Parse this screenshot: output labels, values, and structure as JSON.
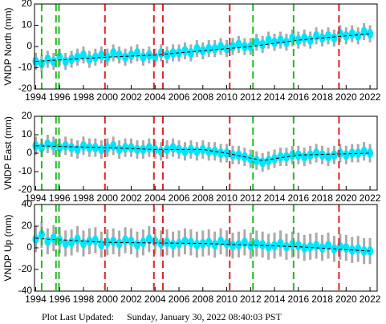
{
  "chart_data": [
    {
      "type": "scatter",
      "ylabel": "VNDP North (mm)",
      "color": "#00e5ff",
      "error_color": "#aaaaaa",
      "error": 4,
      "xlim": [
        1993.9,
        2022.6
      ],
      "xticks": [
        1994,
        1996,
        1998,
        2000,
        2002,
        2004,
        2006,
        2008,
        2010,
        2012,
        2014,
        2016,
        2018,
        2020,
        2022
      ],
      "ylim": [
        -20,
        20
      ],
      "yticks": [
        -20,
        -10,
        0,
        10,
        20
      ],
      "x": [
        1994,
        1994.5,
        1995,
        1995.5,
        1996,
        1996.5,
        1997,
        1997.5,
        1998,
        1998.5,
        1999,
        1999.5,
        2000,
        2000.5,
        2001,
        2001.5,
        2002,
        2002.5,
        2003,
        2003.5,
        2004,
        2004.5,
        2005,
        2005.5,
        2006,
        2006.5,
        2007,
        2007.5,
        2008,
        2008.5,
        2009,
        2009.5,
        2010,
        2010.5,
        2011,
        2011.5,
        2012,
        2012.5,
        2013,
        2013.5,
        2014,
        2014.5,
        2015,
        2015.5,
        2016,
        2016.5,
        2017,
        2017.5,
        2018,
        2018.5,
        2019,
        2019.5,
        2020,
        2020.5,
        2021,
        2021.5,
        2022
      ],
      "values": [
        -7,
        -8,
        -6,
        -7,
        -5,
        -7,
        -6,
        -5,
        -4,
        -6,
        -5,
        -4,
        -5,
        -3,
        -4,
        -5,
        -4,
        -3,
        -5,
        -4,
        -5,
        -3,
        -4,
        -3,
        -3,
        -2,
        -3,
        -1,
        -2,
        -1,
        -1,
        0,
        -1,
        0,
        1,
        0,
        0,
        2,
        1,
        3,
        2,
        3,
        2,
        4,
        3,
        4,
        3,
        5,
        4,
        5,
        4,
        6,
        5,
        6,
        5,
        7,
        6
      ],
      "model": {
        "x": [
          1994,
          2000,
          2004,
          2008,
          2012,
          2016,
          2022
        ],
        "values": [
          -7,
          -5,
          -4,
          -2,
          0,
          3,
          6
        ]
      }
    },
    {
      "type": "scatter",
      "ylabel": "VNDP East (mm)",
      "color": "#00e5ff",
      "error_color": "#aaaaaa",
      "error": 5,
      "xlim": [
        1993.9,
        2022.6
      ],
      "xticks": [
        1994,
        1996,
        1998,
        2000,
        2002,
        2004,
        2006,
        2008,
        2010,
        2012,
        2014,
        2016,
        2018,
        2020,
        2022
      ],
      "ylim": [
        -20,
        20
      ],
      "yticks": [
        -20,
        -10,
        0,
        10,
        20
      ],
      "x": [
        1994,
        1994.5,
        1995,
        1995.5,
        1996,
        1996.5,
        1997,
        1997.5,
        1998,
        1998.5,
        1999,
        1999.5,
        2000,
        2000.5,
        2001,
        2001.5,
        2002,
        2002.5,
        2003,
        2003.5,
        2004,
        2004.5,
        2005,
        2005.5,
        2006,
        2006.5,
        2007,
        2007.5,
        2008,
        2008.5,
        2009,
        2009.5,
        2010,
        2010.5,
        2011,
        2011.5,
        2012,
        2012.5,
        2013,
        2013.5,
        2014,
        2014.5,
        2015,
        2015.5,
        2016,
        2016.5,
        2017,
        2017.5,
        2018,
        2018.5,
        2019,
        2019.5,
        2020,
        2020.5,
        2021,
        2021.5,
        2022
      ],
      "values": [
        4,
        3,
        5,
        4,
        3,
        4,
        3,
        2,
        4,
        3,
        3,
        2,
        3,
        4,
        2,
        3,
        3,
        2,
        2,
        3,
        2,
        1,
        2,
        3,
        2,
        1,
        2,
        1,
        2,
        1,
        1,
        0,
        0,
        -1,
        -1,
        -2,
        -3,
        -4,
        -5,
        -4,
        -3,
        -2,
        -2,
        -1,
        -1,
        -2,
        -1,
        0,
        -1,
        -2,
        -1,
        0,
        -1,
        0,
        0,
        1,
        0
      ],
      "model": {
        "x": [
          1994,
          2000,
          2004,
          2008,
          2010,
          2013,
          2016,
          2022
        ],
        "values": [
          4,
          3,
          2,
          2,
          0,
          -4,
          -1,
          0
        ]
      }
    },
    {
      "type": "scatter",
      "ylabel": "VNDP Up (mm)",
      "color": "#00e5ff",
      "error_color": "#aaaaaa",
      "error": 12,
      "xlim": [
        1993.9,
        2022.6
      ],
      "xticks": [
        1994,
        1996,
        1998,
        2000,
        2002,
        2004,
        2006,
        2008,
        2010,
        2012,
        2014,
        2016,
        2018,
        2020,
        2022
      ],
      "ylim": [
        -40,
        40
      ],
      "yticks": [
        -40,
        -20,
        0,
        20,
        40
      ],
      "x": [
        1994,
        1994.5,
        1995,
        1995.5,
        1996,
        1996.5,
        1997,
        1997.5,
        1998,
        1998.5,
        1999,
        1999.5,
        2000,
        2000.5,
        2001,
        2001.5,
        2002,
        2002.5,
        2003,
        2003.5,
        2004,
        2004.5,
        2005,
        2005.5,
        2006,
        2006.5,
        2007,
        2007.5,
        2008,
        2008.5,
        2009,
        2009.5,
        2010,
        2010.5,
        2011,
        2011.5,
        2012,
        2012.5,
        2013,
        2013.5,
        2014,
        2014.5,
        2015,
        2015.5,
        2016,
        2016.5,
        2017,
        2017.5,
        2018,
        2018.5,
        2019,
        2019.5,
        2020,
        2020.5,
        2021,
        2021.5,
        2022
      ],
      "values": [
        8,
        12,
        6,
        9,
        7,
        4,
        5,
        8,
        4,
        6,
        7,
        3,
        5,
        6,
        4,
        7,
        6,
        3,
        5,
        8,
        6,
        4,
        5,
        3,
        4,
        6,
        5,
        3,
        4,
        5,
        3,
        6,
        4,
        2,
        3,
        5,
        2,
        4,
        3,
        1,
        2,
        4,
        1,
        3,
        2,
        0,
        1,
        2,
        0,
        2,
        -1,
        1,
        0,
        -2,
        -1,
        -3,
        -3
      ],
      "model": {
        "x": [
          1994,
          1995,
          2000,
          2008,
          2016,
          2022
        ],
        "values": [
          9,
          8,
          5,
          4,
          1,
          -3
        ]
      }
    }
  ],
  "breaks": [
    {
      "x": 1994.5,
      "color": "#22bb22"
    },
    {
      "x": 1995.7,
      "color": "#22bb22"
    },
    {
      "x": 1995.95,
      "color": "#22bb22"
    },
    {
      "x": 1999.8,
      "color": "#dd2222"
    },
    {
      "x": 2003.9,
      "color": "#dd2222"
    },
    {
      "x": 2004.65,
      "color": "#dd2222"
    },
    {
      "x": 2010.25,
      "color": "#dd2222"
    },
    {
      "x": 2012.2,
      "color": "#22bb22"
    },
    {
      "x": 2015.6,
      "color": "#22bb22"
    },
    {
      "x": 2019.4,
      "color": "#dd2222"
    }
  ],
  "footer": {
    "label": "Plot Last Updated:",
    "date": "Sunday, January 30, 2022 08:40:03 PST"
  }
}
